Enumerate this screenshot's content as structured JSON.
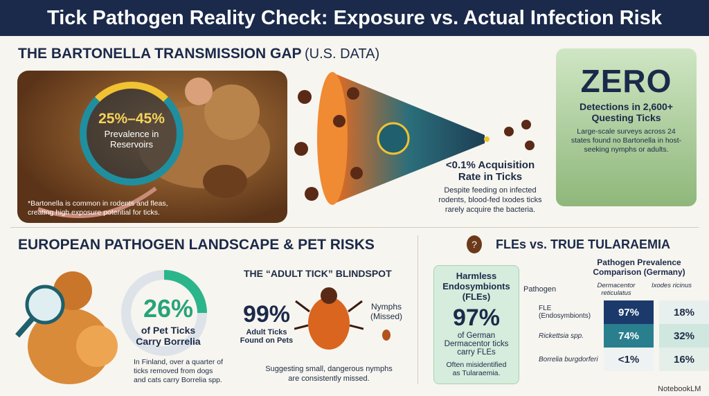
{
  "title": "Tick Pathogen Reality Check: Exposure vs. Actual Infection Risk",
  "bartonella": {
    "heading": "THE BARTONELLA TRANSMISSION GAP",
    "heading_note": "(U.S. DATA)",
    "prevalence": "25%–45%",
    "prevalence_label": "Prevalence in Reservoirs",
    "footnote": "*Bartonella is common in rodents and fleas, creating high exposure potential for ticks.",
    "acquisition": "<0.1% Acquisition Rate in Ticks",
    "acquisition_note": "Despite feeding on infected rodents, blood-fed Ixodes ticks rarely acquire the bacteria.",
    "zero": "ZERO",
    "zero_label": "Detections in 2,600+ Questing Ticks",
    "zero_note": "Large-scale surveys across 24 states found no Bartonella in host-seeking nymphs or adults."
  },
  "europe": {
    "heading": "EUROPEAN PATHOGEN LANDSCAPE & PET RISKS",
    "pet_percent": "26%",
    "pet_label": "of Pet Ticks Carry Borrelia",
    "pet_note": "In Finland, over a quarter of ticks removed from dogs and cats carry Borrelia spp.",
    "blindspot_title": "THE “ADULT TICK” BLINDSPOT",
    "adult_percent": "99%",
    "adult_label": "Adult Ticks Found on Pets",
    "nymphs": "Nymphs (Missed)",
    "blindspot_note": "Suggesting small, dangerous nymphs are consistently missed."
  },
  "fle": {
    "heading": "FLEs vs. TRUE TULARAEMIA",
    "box_title": "Harmless Endosymbionts (FLEs)",
    "percent": "97%",
    "box_label": "of German Dermacentor ticks carry FLEs",
    "box_note": "Often misidentified as Tularaemia.",
    "table": {
      "title": "Pathogen Prevalence Comparison (Germany)",
      "columns": [
        "Pathogen",
        "Dermacentor reticulatus",
        "Ixodes ricinus"
      ],
      "rows": [
        [
          "FLE (Endosymbionts)",
          "97%",
          "18%"
        ],
        [
          "Rickettsia spp.",
          "74%",
          "32%"
        ],
        [
          "Borrelia burgdorferi",
          "<1%",
          "16%"
        ]
      ]
    }
  },
  "brand": "NotebookLM"
}
